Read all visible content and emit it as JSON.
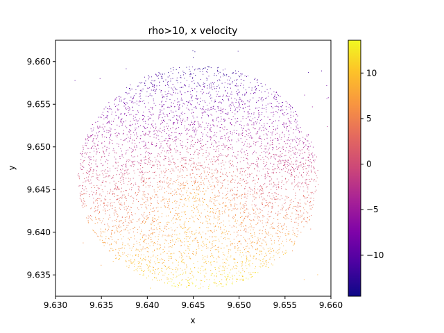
{
  "chart_data": {
    "type": "scatter",
    "title": "rho>10, x velocity",
    "xlabel": "x",
    "ylabel": "y",
    "xlim": [
      9.63,
      9.66
    ],
    "ylim": [
      9.6325,
      9.6625
    ],
    "x_ticks": [
      {
        "value": 9.63,
        "label": "9.630"
      },
      {
        "value": 9.635,
        "label": "9.635"
      },
      {
        "value": 9.64,
        "label": "9.640"
      },
      {
        "value": 9.645,
        "label": "9.645"
      },
      {
        "value": 9.65,
        "label": "9.650"
      },
      {
        "value": 9.655,
        "label": "9.655"
      },
      {
        "value": 9.66,
        "label": "9.660"
      }
    ],
    "y_ticks": [
      {
        "value": 9.635,
        "label": "9.635"
      },
      {
        "value": 9.64,
        "label": "9.640"
      },
      {
        "value": 9.645,
        "label": "9.645"
      },
      {
        "value": 9.65,
        "label": "9.650"
      },
      {
        "value": 9.655,
        "label": "9.655"
      },
      {
        "value": 9.66,
        "label": "9.660"
      }
    ],
    "grid": false,
    "colormap": "plasma",
    "colorbar": {
      "range": [
        -14.5,
        13.6
      ],
      "ticks": [
        {
          "value": -10,
          "label": "−10"
        },
        {
          "value": -5,
          "label": "−5"
        },
        {
          "value": 0,
          "label": "0"
        },
        {
          "value": 5,
          "label": "5"
        },
        {
          "value": 10,
          "label": "10"
        }
      ]
    },
    "points_distribution": {
      "center": [
        9.6455,
        9.6465
      ],
      "radius": 0.0125,
      "high_value_center": [
        9.645,
        9.6445
      ],
      "high_value": 13,
      "low_value_region_center": [
        9.646,
        9.652
      ],
      "low_value": -13
    }
  }
}
